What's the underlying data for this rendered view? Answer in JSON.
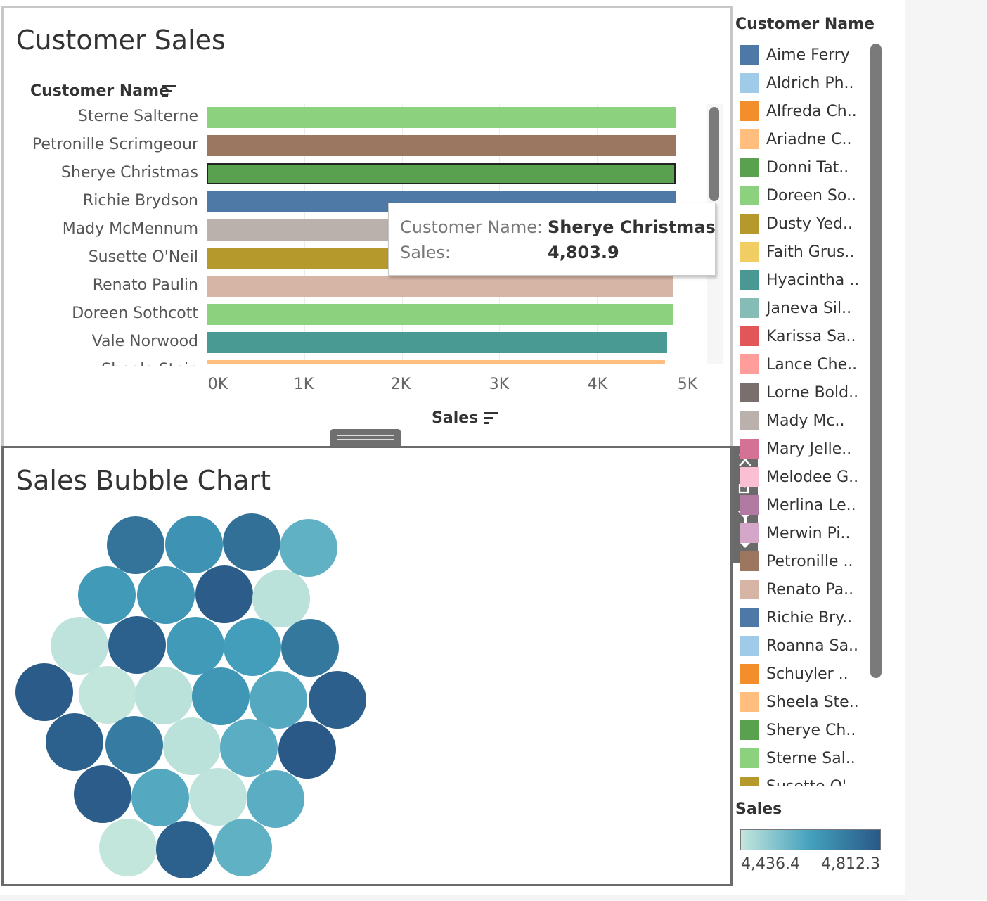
{
  "top_chart": {
    "title": "Customer Sales",
    "row_header": "Customer Name",
    "x_axis_title": "Sales",
    "x_ticks": [
      "0K",
      "1K",
      "2K",
      "3K",
      "4K",
      "5K"
    ]
  },
  "tooltip": {
    "name_key": "Customer Name:",
    "name_value": "Sherye Christmas",
    "sales_key": "Sales:",
    "sales_value": "4,803.9"
  },
  "bottom_chart": {
    "title": "Sales Bubble Chart"
  },
  "legend": {
    "title": "Customer Name",
    "items": [
      {
        "label": "Aime Ferry",
        "color": "#4e79a7"
      },
      {
        "label": "Aldrich Ph..",
        "color": "#a0cbe8"
      },
      {
        "label": "Alfreda Ch..",
        "color": "#f28e2b"
      },
      {
        "label": "Ariadne C..",
        "color": "#ffbe7d"
      },
      {
        "label": "Donni Tat..",
        "color": "#59a14f"
      },
      {
        "label": "Doreen So..",
        "color": "#8cd17d"
      },
      {
        "label": "Dusty Yed..",
        "color": "#b6992d"
      },
      {
        "label": "Faith Grus..",
        "color": "#f1ce63"
      },
      {
        "label": "Hyacintha ..",
        "color": "#499894"
      },
      {
        "label": "Janeva Sil..",
        "color": "#86bcb6"
      },
      {
        "label": "Karissa Sa..",
        "color": "#e15759"
      },
      {
        "label": "Lance Che..",
        "color": "#ff9d9a"
      },
      {
        "label": "Lorne Bold..",
        "color": "#79706e"
      },
      {
        "label": "Mady Mc..",
        "color": "#bab0ac"
      },
      {
        "label": "Mary Jelle..",
        "color": "#d37295"
      },
      {
        "label": "Melodee G..",
        "color": "#fabfd2"
      },
      {
        "label": "Merlina Le..",
        "color": "#b07aa1"
      },
      {
        "label": "Merwin Pi..",
        "color": "#d4a6c8"
      },
      {
        "label": "Petronille ..",
        "color": "#9d7660"
      },
      {
        "label": "Renato Pa..",
        "color": "#d7b5a6"
      },
      {
        "label": "Richie Bry..",
        "color": "#4e79a7"
      },
      {
        "label": "Roanna Sa..",
        "color": "#a0cbe8"
      },
      {
        "label": "Schuyler ..",
        "color": "#f28e2b"
      },
      {
        "label": "Sheela Ste..",
        "color": "#ffbe7d"
      },
      {
        "label": "Sherye Ch..",
        "color": "#59a14f"
      },
      {
        "label": "Sterne Sal..",
        "color": "#8cd17d"
      },
      {
        "label": "Susette O'..",
        "color": "#b6992d"
      }
    ]
  },
  "sales_legend": {
    "title": "Sales",
    "min_label": "4,436.4",
    "max_label": "4,812.3"
  },
  "chart_data": [
    {
      "type": "bar",
      "orientation": "horizontal",
      "title": "Customer Sales",
      "ylabel": "Customer Name",
      "xlabel": "Sales",
      "xlim": [
        0,
        5000
      ],
      "categories": [
        "Sterne Salterne",
        "Petronille Scrimgeour",
        "Sherye Christmas",
        "Richie Brydson",
        "Mady McMennum",
        "Susette O'Neil",
        "Renato Paulin",
        "Doreen Sothcott",
        "Vale Norwood",
        "Sheela Stein"
      ],
      "values": [
        4812,
        4808,
        4803.9,
        4805,
        4790,
        4785,
        4780,
        4780,
        4720,
        4700
      ],
      "colors": [
        "#8cd17d",
        "#9b7660",
        "#59a14f",
        "#4e79a7",
        "#bab0ac",
        "#b6992d",
        "#d7b5a6",
        "#8cd17d",
        "#4a9a94",
        "#ffbe7d"
      ],
      "selected_index": 2,
      "grid": true
    },
    {
      "type": "bubble",
      "title": "Sales Bubble Chart",
      "color_range": [
        4436.4,
        4812.3
      ],
      "bubbles": [
        {
          "x": 193,
          "y": 775,
          "sales": 4740
        },
        {
          "x": 276,
          "y": 774,
          "sales": 4660
        },
        {
          "x": 358,
          "y": 771,
          "sales": 4750
        },
        {
          "x": 439,
          "y": 779,
          "sales": 4580
        },
        {
          "x": 152,
          "y": 846,
          "sales": 4640
        },
        {
          "x": 236,
          "y": 846,
          "sales": 4650
        },
        {
          "x": 319,
          "y": 845,
          "sales": 4800
        },
        {
          "x": 400,
          "y": 851,
          "sales": 4450
        },
        {
          "x": 113,
          "y": 918,
          "sales": 4445
        },
        {
          "x": 195,
          "y": 917,
          "sales": 4790
        },
        {
          "x": 278,
          "y": 918,
          "sales": 4640
        },
        {
          "x": 359,
          "y": 920,
          "sales": 4630
        },
        {
          "x": 441,
          "y": 921,
          "sales": 4730
        },
        {
          "x": 63,
          "y": 984,
          "sales": 4805
        },
        {
          "x": 153,
          "y": 988,
          "sales": 4440
        },
        {
          "x": 233,
          "y": 989,
          "sales": 4450
        },
        {
          "x": 314,
          "y": 990,
          "sales": 4650
        },
        {
          "x": 396,
          "y": 995,
          "sales": 4600
        },
        {
          "x": 480,
          "y": 995,
          "sales": 4795
        },
        {
          "x": 106,
          "y": 1055,
          "sales": 4790
        },
        {
          "x": 191,
          "y": 1059,
          "sales": 4720
        },
        {
          "x": 273,
          "y": 1061,
          "sales": 4450
        },
        {
          "x": 354,
          "y": 1063,
          "sales": 4590
        },
        {
          "x": 437,
          "y": 1066,
          "sales": 4810
        },
        {
          "x": 146,
          "y": 1129,
          "sales": 4800
        },
        {
          "x": 228,
          "y": 1134,
          "sales": 4600
        },
        {
          "x": 310,
          "y": 1133,
          "sales": 4445
        },
        {
          "x": 392,
          "y": 1136,
          "sales": 4590
        },
        {
          "x": 182,
          "y": 1205,
          "sales": 4440
        },
        {
          "x": 263,
          "y": 1208,
          "sales": 4790
        },
        {
          "x": 346,
          "y": 1205,
          "sales": 4580
        }
      ]
    }
  ]
}
